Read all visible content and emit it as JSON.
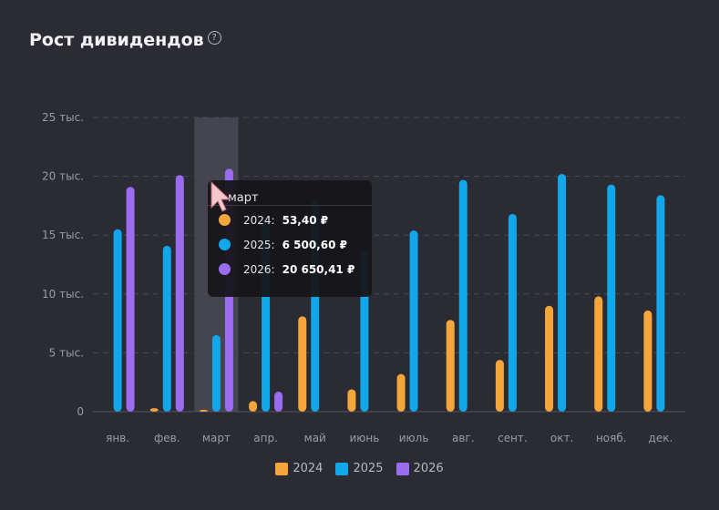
{
  "header": {
    "title": "Рост дивидендов",
    "help_icon": "?"
  },
  "colors": {
    "2024": "#f5a63a",
    "2025": "#12a7ea",
    "2026": "#9b6cf0"
  },
  "chart_data": {
    "type": "bar",
    "categories": [
      "янв.",
      "фев.",
      "март",
      "апр.",
      "май",
      "июнь",
      "июль",
      "авг.",
      "сент.",
      "окт.",
      "нояб.",
      "дек."
    ],
    "series": [
      {
        "name": "2024",
        "values": [
          0,
          300,
          53.4,
          900,
          8100,
          1900,
          3200,
          7800,
          4400,
          9000,
          9800,
          8600
        ]
      },
      {
        "name": "2025",
        "values": [
          15500,
          14100,
          6500.6,
          16300,
          18000,
          13800,
          15400,
          19700,
          16800,
          20200,
          19300,
          18400
        ]
      },
      {
        "name": "2026",
        "values": [
          19100,
          20100,
          20650.41,
          1700,
          0,
          0,
          0,
          0,
          0,
          0,
          0,
          0
        ]
      }
    ],
    "yticks": [
      "0",
      "5 тыс.",
      "10 тыс.",
      "15 тыс.",
      "20 тыс.",
      "25 тыс."
    ],
    "ylim": [
      0,
      25000
    ],
    "grid": true,
    "legend": "bottom-center",
    "highlighted_category": "март"
  },
  "tooltip": {
    "title": "март",
    "rows": [
      {
        "year": "2024:",
        "value": "53,40 ₽"
      },
      {
        "year": "2025:",
        "value": "6 500,60 ₽"
      },
      {
        "year": "2026:",
        "value": "20 650,41 ₽"
      }
    ]
  },
  "legend": [
    "2024",
    "2025",
    "2026"
  ]
}
